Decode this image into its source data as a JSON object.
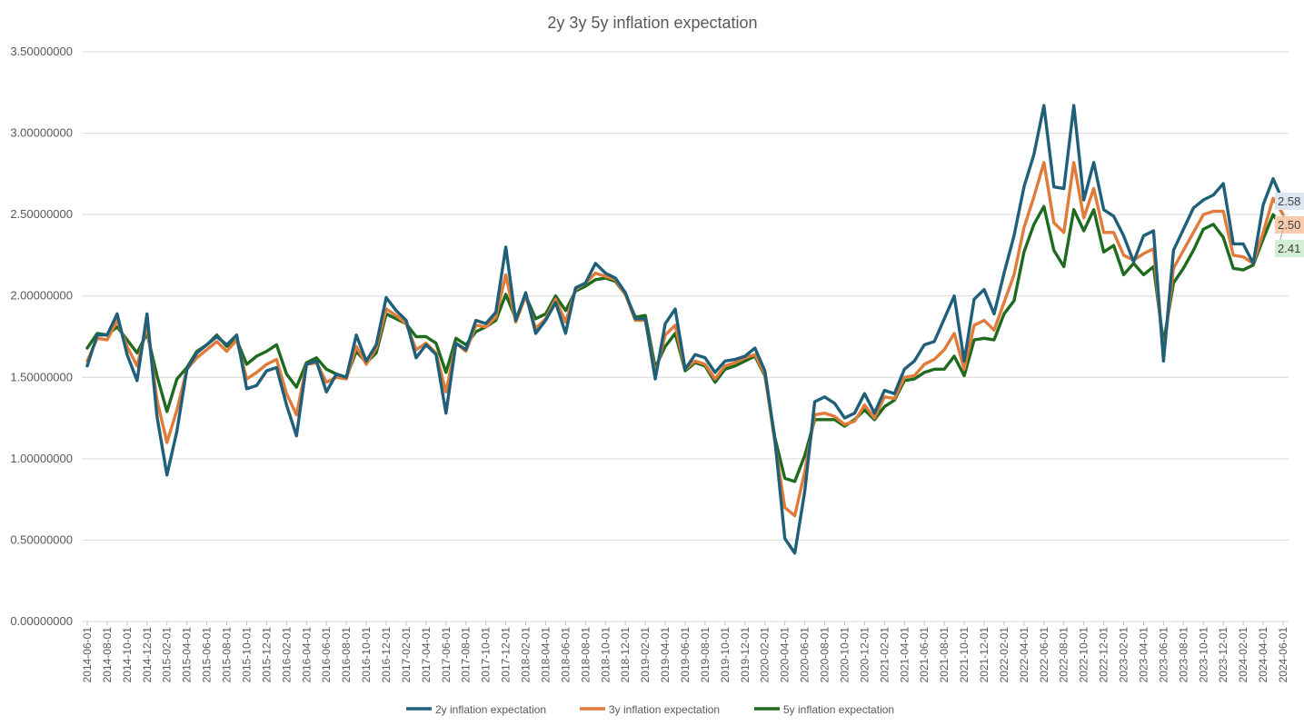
{
  "chart_data": {
    "type": "line",
    "title": "2y 3y 5y inflation expectation",
    "xlabel": "",
    "ylabel": "",
    "ylim": [
      0,
      3.5
    ],
    "yticks": [
      "0.00000000",
      "0.50000000",
      "1.00000000",
      "1.50000000",
      "2.00000000",
      "2.50000000",
      "3.00000000",
      "3.50000000"
    ],
    "ytick_values": [
      0,
      0.5,
      1,
      1.5,
      2,
      2.5,
      3,
      3.5
    ],
    "x_tick_labels": [
      "2014-06-01",
      "2014-08-01",
      "2014-10-01",
      "2014-12-01",
      "2015-02-01",
      "2015-04-01",
      "2015-06-01",
      "2015-08-01",
      "2015-10-01",
      "2015-12-01",
      "2016-02-01",
      "2016-04-01",
      "2016-06-01",
      "2016-08-01",
      "2016-10-01",
      "2016-12-01",
      "2017-02-01",
      "2017-04-01",
      "2017-06-01",
      "2017-08-01",
      "2017-10-01",
      "2017-12-01",
      "2018-02-01",
      "2018-04-01",
      "2018-06-01",
      "2018-08-01",
      "2018-10-01",
      "2018-12-01",
      "2019-02-01",
      "2019-04-01",
      "2019-06-01",
      "2019-08-01",
      "2019-10-01",
      "2019-12-01",
      "2020-02-01",
      "2020-04-01",
      "2020-06-01",
      "2020-08-01",
      "2020-10-01",
      "2020-12-01",
      "2021-02-01",
      "2021-04-01",
      "2021-06-01",
      "2021-08-01",
      "2021-10-01",
      "2021-12-01",
      "2022-02-01",
      "2022-04-01",
      "2022-06-01",
      "2022-08-01",
      "2022-10-01",
      "2022-12-01",
      "2023-02-01",
      "2023-04-01",
      "2023-06-01",
      "2023-08-01",
      "2023-10-01",
      "2023-12-01",
      "2024-02-01",
      "2024-04-01",
      "2024-06-01"
    ],
    "grid": true,
    "legend_position": "bottom",
    "series": [
      {
        "name": "2y inflation expectation",
        "color": "#1f5f7a",
        "end_label": "2.58",
        "end_label_bg": "#dce6f2",
        "values": [
          1.57,
          1.76,
          1.76,
          1.89,
          1.64,
          1.48,
          1.89,
          1.26,
          0.9,
          1.17,
          1.55,
          1.65,
          1.7,
          1.75,
          1.7,
          1.76,
          1.43,
          1.45,
          1.54,
          1.56,
          1.33,
          1.14,
          1.58,
          1.6,
          1.41,
          1.52,
          1.5,
          1.76,
          1.6,
          1.7,
          1.99,
          1.91,
          1.85,
          1.62,
          1.7,
          1.64,
          1.28,
          1.71,
          1.67,
          1.85,
          1.83,
          1.9,
          2.3,
          1.85,
          2.02,
          1.77,
          1.85,
          1.96,
          1.77,
          2.05,
          2.08,
          2.2,
          2.14,
          2.11,
          2.02,
          1.86,
          1.86,
          1.49,
          1.83,
          1.92,
          1.55,
          1.64,
          1.62,
          1.53,
          1.6,
          1.61,
          1.63,
          1.68,
          1.54,
          1.12,
          0.51,
          0.42,
          0.8,
          1.35,
          1.38,
          1.34,
          1.25,
          1.28,
          1.4,
          1.28,
          1.42,
          1.4,
          1.55,
          1.6,
          1.7,
          1.72,
          1.86,
          2.0,
          1.6,
          1.98,
          2.04,
          1.89,
          2.14,
          2.37,
          2.67,
          2.87,
          3.17,
          2.67,
          2.66,
          3.17,
          2.59,
          2.82,
          2.53,
          2.49,
          2.37,
          2.21,
          2.37,
          2.4,
          1.6,
          2.28,
          2.41,
          2.54,
          2.59,
          2.62,
          2.69,
          2.32,
          2.32,
          2.2,
          2.56,
          2.72,
          2.58
        ]
      },
      {
        "name": "3y inflation expectation",
        "color": "#e07b39",
        "end_label": "2.50",
        "end_label_bg": "#f8cbad",
        "values": [
          1.6,
          1.74,
          1.73,
          1.85,
          1.69,
          1.57,
          1.82,
          1.36,
          1.1,
          1.3,
          1.55,
          1.62,
          1.67,
          1.72,
          1.66,
          1.73,
          1.49,
          1.53,
          1.58,
          1.61,
          1.4,
          1.27,
          1.58,
          1.59,
          1.47,
          1.5,
          1.49,
          1.69,
          1.58,
          1.68,
          1.92,
          1.88,
          1.83,
          1.67,
          1.71,
          1.65,
          1.41,
          1.71,
          1.66,
          1.82,
          1.81,
          1.87,
          2.13,
          1.84,
          2.0,
          1.8,
          1.86,
          1.98,
          1.84,
          2.04,
          2.08,
          2.14,
          2.12,
          2.1,
          2.01,
          1.85,
          1.85,
          1.52,
          1.76,
          1.82,
          1.55,
          1.6,
          1.58,
          1.49,
          1.57,
          1.59,
          1.62,
          1.64,
          1.52,
          1.1,
          0.7,
          0.65,
          0.92,
          1.27,
          1.28,
          1.26,
          1.21,
          1.23,
          1.33,
          1.25,
          1.38,
          1.37,
          1.5,
          1.51,
          1.58,
          1.61,
          1.67,
          1.77,
          1.55,
          1.82,
          1.85,
          1.79,
          1.96,
          2.13,
          2.42,
          2.61,
          2.82,
          2.45,
          2.39,
          2.82,
          2.48,
          2.66,
          2.39,
          2.39,
          2.25,
          2.22,
          2.26,
          2.29,
          1.64,
          2.17,
          2.28,
          2.39,
          2.5,
          2.52,
          2.52,
          2.25,
          2.24,
          2.2,
          2.39,
          2.6,
          2.5
        ]
      },
      {
        "name": "5y inflation expectation",
        "color": "#1e6b1e",
        "end_label": "2.41",
        "end_label_bg": "#d4eed4",
        "values": [
          1.68,
          1.77,
          1.76,
          1.81,
          1.73,
          1.65,
          1.77,
          1.51,
          1.29,
          1.49,
          1.56,
          1.66,
          1.7,
          1.76,
          1.69,
          1.73,
          1.58,
          1.63,
          1.66,
          1.7,
          1.52,
          1.44,
          1.59,
          1.62,
          1.55,
          1.52,
          1.5,
          1.66,
          1.59,
          1.65,
          1.89,
          1.86,
          1.83,
          1.75,
          1.75,
          1.71,
          1.53,
          1.74,
          1.7,
          1.78,
          1.81,
          1.85,
          2.01,
          1.86,
          2.0,
          1.86,
          1.89,
          2.0,
          1.91,
          2.03,
          2.06,
          2.1,
          2.11,
          2.09,
          2.01,
          1.87,
          1.88,
          1.56,
          1.69,
          1.77,
          1.54,
          1.59,
          1.57,
          1.47,
          1.55,
          1.57,
          1.6,
          1.63,
          1.51,
          1.13,
          0.88,
          0.86,
          1.02,
          1.24,
          1.24,
          1.24,
          1.2,
          1.24,
          1.3,
          1.24,
          1.32,
          1.36,
          1.48,
          1.49,
          1.53,
          1.55,
          1.55,
          1.63,
          1.51,
          1.73,
          1.74,
          1.73,
          1.89,
          1.97,
          2.27,
          2.44,
          2.55,
          2.28,
          2.18,
          2.53,
          2.4,
          2.53,
          2.27,
          2.31,
          2.13,
          2.2,
          2.13,
          2.18,
          1.71,
          2.08,
          2.17,
          2.28,
          2.41,
          2.44,
          2.36,
          2.17,
          2.16,
          2.19,
          2.35,
          2.5,
          2.41
        ]
      }
    ]
  }
}
